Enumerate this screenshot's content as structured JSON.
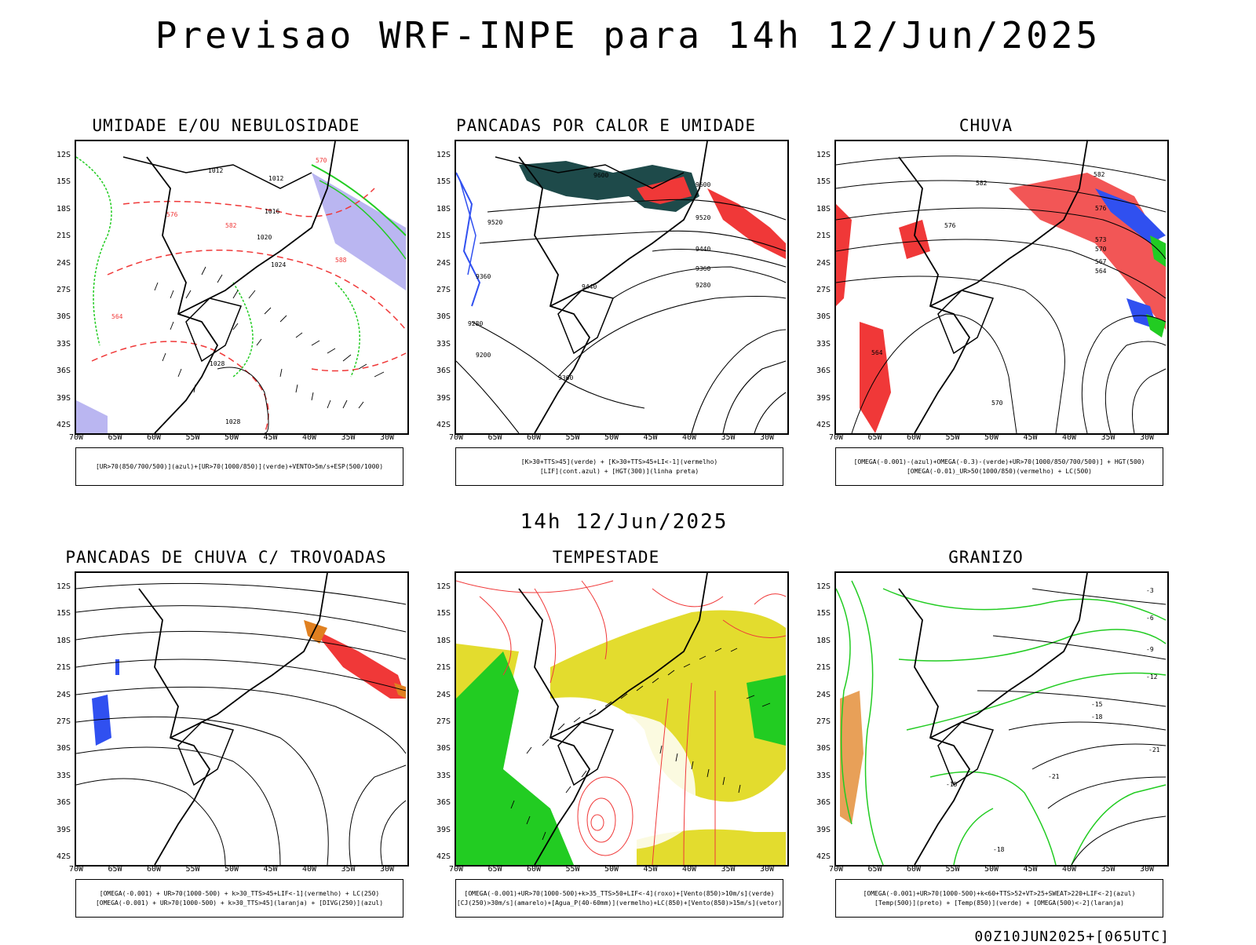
{
  "title": "Previsao WRF-INPE  para 14h 12/Jun/2025",
  "mid_time": "14h 12/Jun/2025",
  "footer": "00Z10JUN2025+[065UTC]",
  "y_ticks": [
    "12S",
    "15S",
    "18S",
    "21S",
    "24S",
    "27S",
    "30S",
    "33S",
    "36S",
    "39S",
    "42S"
  ],
  "x_ticks": [
    "70W",
    "65W",
    "60W",
    "55W",
    "50W",
    "45W",
    "40W",
    "35W",
    "30W"
  ],
  "panels": [
    {
      "title": "UMIDADE E/OU NEBULOSIDADE",
      "legend": [
        "[UR>70(850/700/500)](azul)+[UR>70(1000/850)](verde)+VENTO>5m/s+ESP(500/1000)"
      ]
    },
    {
      "title": "PANCADAS POR CALOR E UMIDADE",
      "legend": [
        "[K>30+TTS>45](verde) + [K>30+TTS>45+LI<-1](vermelho)",
        "[LIF](cont.azul) + [HGT(300)](linha preta)"
      ]
    },
    {
      "title": "CHUVA",
      "legend": [
        "[OMEGA(-0.001)-(azul)+OMEGA(-0.3)-(verde)+UR>70(1000/850/700/500)] + HGT(500)",
        "[OMEGA(-0.01)_UR>50(1000/850)(vermelho) + LC(500)"
      ]
    },
    {
      "title": "PANCADAS DE CHUVA C/ TROVOADAS",
      "legend": [
        "[OMEGA(-0.001) + UR>70(1000-500) + k>30_TTS>45+LIF<-1](vermelho) + LC(250)",
        "[OMEGA(-0.001) + UR>70(1000-500) + k>30_TTS>45](laranja) + [DIVG(250)](azul)"
      ]
    },
    {
      "title": "TEMPESTADE",
      "legend": [
        "[OMEGA(-0.001)+UR>70(1000-500)+k>35_TTS>50+LIF<-4](roxo)+[Vento(850)>10m/s](verde)",
        "[CJ(250)>30m/s](amarelo)+[Agua_P(40-60mm)](vermelho)+LC(850)+[Vento(850)>15m/s](vetor)"
      ]
    },
    {
      "title": "GRANIZO",
      "legend": [
        "[OMEGA(-0.001)+UR>70(1000-500)+k<60+TTS>52+VT>25+SWEAT>220+LIF<-2](azul)",
        "[Temp(500)](preto) + [Temp(850)](verde) + [OMEGA(500)<-2](laranja)"
      ]
    }
  ],
  "contour_labels": {
    "p1": [
      "1012",
      "1012",
      "1016",
      "1020",
      "1024",
      "1028",
      "1028",
      "570",
      "576",
      "582",
      "588",
      "564"
    ],
    "p2": [
      "9600",
      "9600",
      "9520",
      "9520",
      "9440",
      "9360",
      "9280",
      "9440",
      "9360",
      "9200",
      "9280",
      "9360"
    ],
    "p3": [
      "582",
      "582",
      "576",
      "576",
      "573",
      "570",
      "567",
      "564",
      "564",
      "570"
    ],
    "p6": [
      "-3",
      "-6",
      "-9",
      "-12",
      "-15",
      "-18",
      "-21",
      "-21",
      "-18",
      "-15"
    ]
  },
  "colors": {
    "green": "#22cc22",
    "red": "#f03838",
    "blue": "#3050f0",
    "darkteal": "#1e4a4a",
    "yellow": "#e3dc2e",
    "orange": "#e08020",
    "lavender": "#a9a4ee"
  }
}
